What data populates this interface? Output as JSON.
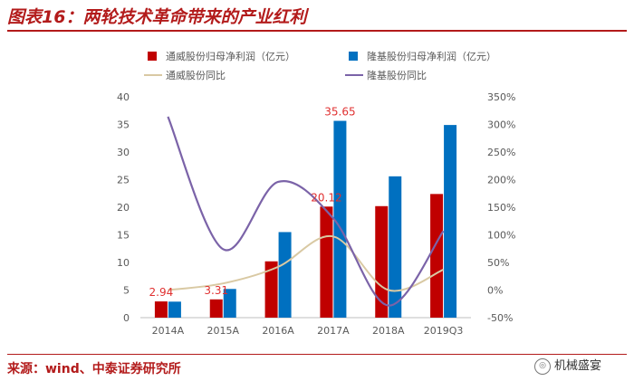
{
  "header": {
    "title": "图表16：两轮技术革命带来的产业红利"
  },
  "footer": {
    "source": "来源：wind、中泰证券研究所",
    "watermark": "机械盛宴"
  },
  "colors": {
    "series1_bar": "#c00000",
    "series2_bar": "#0070c0",
    "series1_line": "#d9c9a3",
    "series2_line": "#7b63a8",
    "brand": "#b31b1b"
  },
  "chart_data": {
    "type": "bar",
    "categories": [
      "2014A",
      "2015A",
      "2016A",
      "2017A",
      "2018A",
      "2019Q3"
    ],
    "series": [
      {
        "name": "通威股份归母净利润（亿元）",
        "type": "bar",
        "axis": "left",
        "values": [
          2.94,
          3.31,
          10.2,
          20.12,
          20.2,
          22.4
        ]
      },
      {
        "name": "隆基股份归母净利润（亿元）",
        "type": "bar",
        "axis": "left",
        "values": [
          2.9,
          5.2,
          15.5,
          35.65,
          25.6,
          34.9
        ]
      },
      {
        "name": "通威股份同比",
        "type": "line",
        "axis": "right",
        "values": [
          0.0,
          0.12,
          0.42,
          0.97,
          0.0,
          0.37
        ]
      },
      {
        "name": "隆基股份同比",
        "type": "line",
        "axis": "right",
        "values": [
          3.14,
          0.74,
          1.96,
          1.3,
          -0.28,
          1.07
        ]
      }
    ],
    "data_labels": [
      {
        "series": 0,
        "index": 0,
        "text": "2.94"
      },
      {
        "series": 0,
        "index": 1,
        "text": "3.31"
      },
      {
        "series": 0,
        "index": 3,
        "text": "20.12"
      },
      {
        "series": 1,
        "index": 3,
        "text": "35.65"
      }
    ],
    "y_left": {
      "lim": [
        0,
        40
      ],
      "ticks": [
        0,
        5,
        10,
        15,
        20,
        25,
        30,
        35,
        40
      ],
      "tick_labels": [
        "0",
        "5",
        "10",
        "15",
        "20",
        "25",
        "30",
        "35",
        "40"
      ]
    },
    "y_right": {
      "lim": [
        -0.5,
        3.5
      ],
      "ticks": [
        -0.5,
        0,
        0.5,
        1.0,
        1.5,
        2.0,
        2.5,
        3.0,
        3.5
      ],
      "tick_labels": [
        "-50%",
        "0%",
        "50%",
        "100%",
        "150%",
        "200%",
        "250%",
        "300%",
        "350%"
      ]
    },
    "grid": false,
    "legend_position": "top"
  }
}
